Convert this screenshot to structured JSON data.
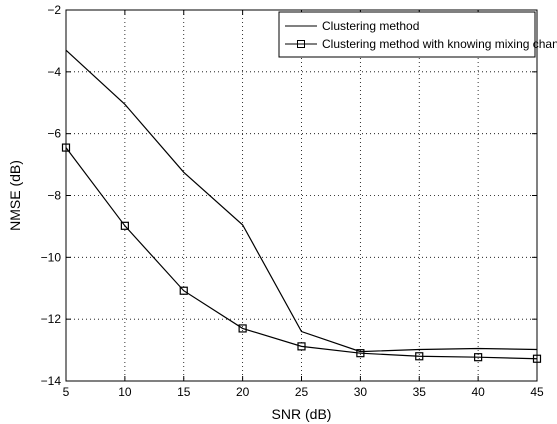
{
  "chart_data": {
    "type": "line",
    "title": "",
    "xlabel": "SNR (dB)",
    "ylabel": "NMSE (dB)",
    "xlim": [
      5,
      45
    ],
    "ylim": [
      -14,
      -2
    ],
    "xticks": [
      5,
      10,
      15,
      20,
      25,
      30,
      35,
      40,
      45
    ],
    "yticks": [
      -14,
      -12,
      -10,
      -8,
      -6,
      -4,
      -2
    ],
    "x": [
      5,
      10,
      15,
      20,
      25,
      30,
      35,
      40,
      45
    ],
    "grid": true,
    "legend_position": "top-right",
    "series": [
      {
        "name": "Clustering method",
        "values": [
          -3.3,
          -5.05,
          -7.25,
          -8.95,
          -12.4,
          -13.05,
          -12.98,
          -12.95,
          -12.98
        ],
        "color": "#000000",
        "marker": "none"
      },
      {
        "name": "Clustering method with knowing mixing channel",
        "values": [
          -6.45,
          -8.98,
          -11.08,
          -12.3,
          -12.88,
          -13.1,
          -13.2,
          -13.23,
          -13.28
        ],
        "color": "#000000",
        "marker": "square"
      }
    ]
  }
}
